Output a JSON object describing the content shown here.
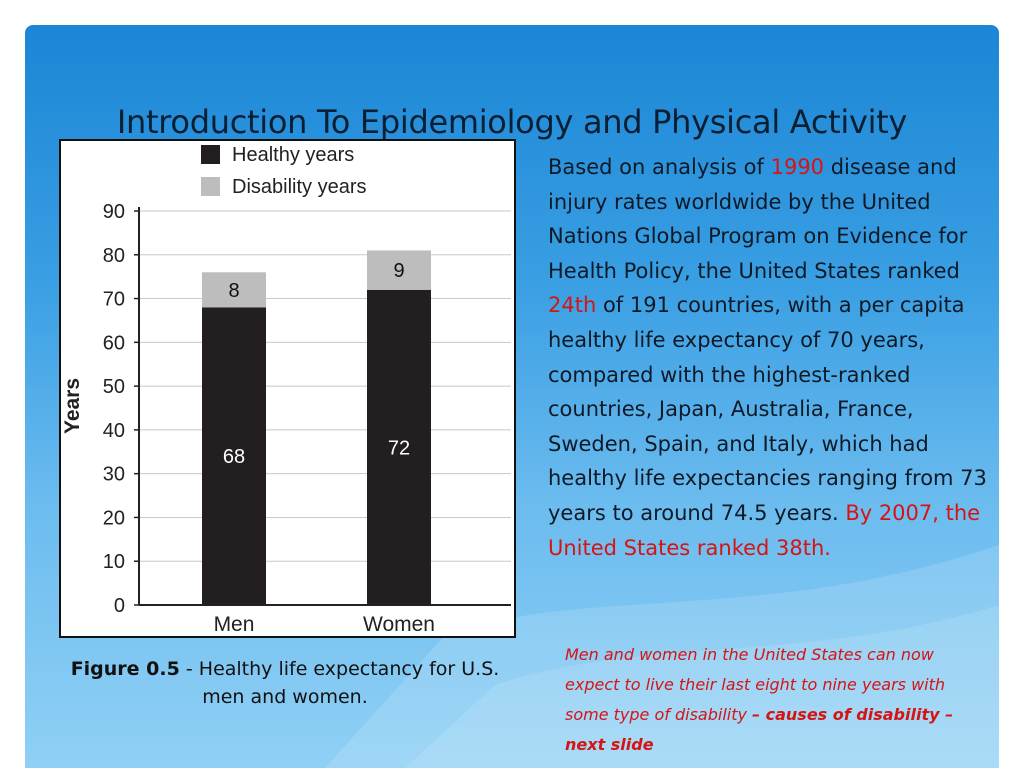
{
  "slide": {
    "title": "Introduction To Epidemiology and Physical Activity"
  },
  "figure": {
    "legend": {
      "healthy": "Healthy years",
      "disability": "Disability years"
    },
    "y_axis_label": "Years",
    "caption_label": "Figure 0.5",
    "caption_text": " - Healthy life expectancy for U.S. men and women."
  },
  "chart_data": {
    "type": "bar",
    "stacked": true,
    "categories": [
      "Men",
      "Women"
    ],
    "series": [
      {
        "name": "Healthy years",
        "values": [
          68,
          72
        ],
        "color": "#231f20"
      },
      {
        "name": "Disability years",
        "values": [
          8,
          9
        ],
        "color": "#bdbdbd"
      }
    ],
    "data_labels": [
      [
        "68",
        "72"
      ],
      [
        "8",
        "9"
      ]
    ],
    "ylabel": "Years",
    "ylim": [
      0,
      90
    ],
    "yticks": [
      0,
      10,
      20,
      30,
      40,
      50,
      60,
      70,
      80,
      90
    ],
    "legend_position": "top",
    "grid": true
  },
  "body": {
    "p1": "Based on analysis of ",
    "year_1990": "1990",
    "p2": " disease and injury rates worldwide by the United Nations Global Program on Evidence for Health Policy, the United States ranked ",
    "rank_24th": "24th",
    "p3": " of 191 countries, with a per capita healthy life expectancy of 70 years, compared with the highest-ranked countries, Japan, Australia, France, Sweden, Spain, and Italy, which had healthy life expectancies ranging from 73 years to around 74.5 years. ",
    "p4_red": "By 2007, the United States ranked 38th."
  },
  "note": {
    "text": "Men and women in the United States can now expect to live their last eight to nine years with some type of disability ",
    "bold": "– causes of disability – next slide"
  },
  "colors": {
    "background_top": "#1b86d6",
    "background_bottom": "#8fd0f5",
    "accent_red": "#d51414"
  }
}
